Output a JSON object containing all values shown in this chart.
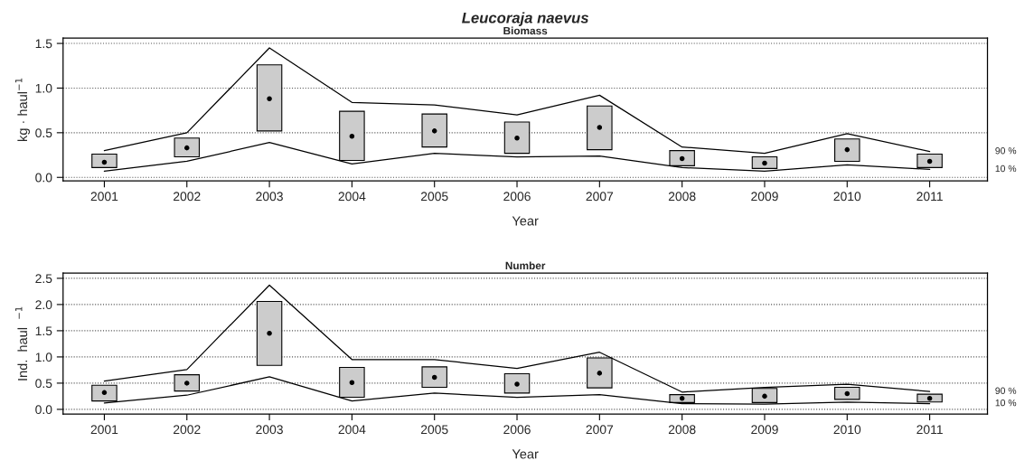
{
  "chart_data": [
    {
      "type": "bar",
      "title": "Leucoraja naevus",
      "subtitle": "Biomass",
      "xlabel": "Year",
      "ylabel": "kg · haul$^{−1}$",
      "categories": [
        "2001",
        "2002",
        "2003",
        "2004",
        "2005",
        "2006",
        "2007",
        "2008",
        "2009",
        "2010",
        "2011"
      ],
      "ylim": [
        -0.04,
        1.56
      ],
      "yticks": [
        {
          "value": 0,
          "label": "0.0"
        },
        0.5,
        {
          "value": 1,
          "label": "1.0"
        },
        1.5
      ],
      "grid": "y",
      "series": [
        {
          "color": "#cccccc",
          "base": [
            0.11,
            0.23,
            0.52,
            0.19,
            0.34,
            0.27,
            0.31,
            0.13,
            0.1,
            0.18,
            0.11
          ],
          "values": [
            0.15,
            0.21,
            0.74,
            0.55,
            0.37,
            0.35,
            0.49,
            0.17,
            0.13,
            0.25,
            0.15
          ]
        },
        {
          "type": "scatter",
          "color": "#000000",
          "marker": "circle",
          "values": [
            0.17,
            0.33,
            0.88,
            0.46,
            0.52,
            0.44,
            0.56,
            0.21,
            0.16,
            0.31,
            0.18
          ]
        },
        {
          "type": "line",
          "name": "90 %",
          "color": "#000000",
          "values": [
            0.3,
            0.5,
            1.45,
            0.84,
            0.81,
            0.7,
            0.92,
            0.34,
            0.27,
            0.49,
            0.29
          ]
        },
        {
          "type": "line",
          "name": "10 %",
          "color": "#000000",
          "values": [
            0.07,
            0.18,
            0.39,
            0.15,
            0.27,
            0.23,
            0.24,
            0.11,
            0.07,
            0.14,
            0.09
          ]
        }
      ]
    },
    {
      "type": "bar",
      "title": "Number",
      "xlabel": "Year",
      "ylabel": "Ind.  haul  $^{−1}$",
      "categories": [
        "2001",
        "2002",
        "2003",
        "2004",
        "2005",
        "2006",
        "2007",
        "2008",
        "2009",
        "2010",
        "2011"
      ],
      "ylim": [
        -0.09,
        2.6
      ],
      "yticks": [
        {
          "value": 0,
          "label": "0.0"
        },
        0.5,
        {
          "value": 1,
          "label": "1.0"
        },
        1.5,
        {
          "value": 2,
          "label": "2.0"
        },
        2.5
      ],
      "grid": "y",
      "series": [
        {
          "color": "#cccccc",
          "base": [
            0.16,
            0.35,
            0.84,
            0.23,
            0.42,
            0.31,
            0.41,
            0.13,
            0.13,
            0.19,
            0.14
          ],
          "values": [
            0.3,
            0.31,
            1.22,
            0.57,
            0.39,
            0.37,
            0.57,
            0.15,
            0.27,
            0.23,
            0.15
          ]
        },
        {
          "type": "scatter",
          "color": "#000000",
          "marker": "circle",
          "values": [
            0.32,
            0.5,
            1.45,
            0.51,
            0.61,
            0.48,
            0.69,
            0.21,
            0.25,
            0.3,
            0.21
          ]
        },
        {
          "type": "line",
          "name": "90 %",
          "color": "#000000",
          "values": [
            0.54,
            0.76,
            2.37,
            0.95,
            0.95,
            0.78,
            1.09,
            0.33,
            0.42,
            0.48,
            0.34
          ]
        },
        {
          "type": "line",
          "name": "10 %",
          "color": "#000000",
          "values": [
            0.12,
            0.27,
            0.62,
            0.16,
            0.31,
            0.23,
            0.28,
            0.11,
            0.1,
            0.14,
            0.11
          ]
        }
      ]
    }
  ]
}
